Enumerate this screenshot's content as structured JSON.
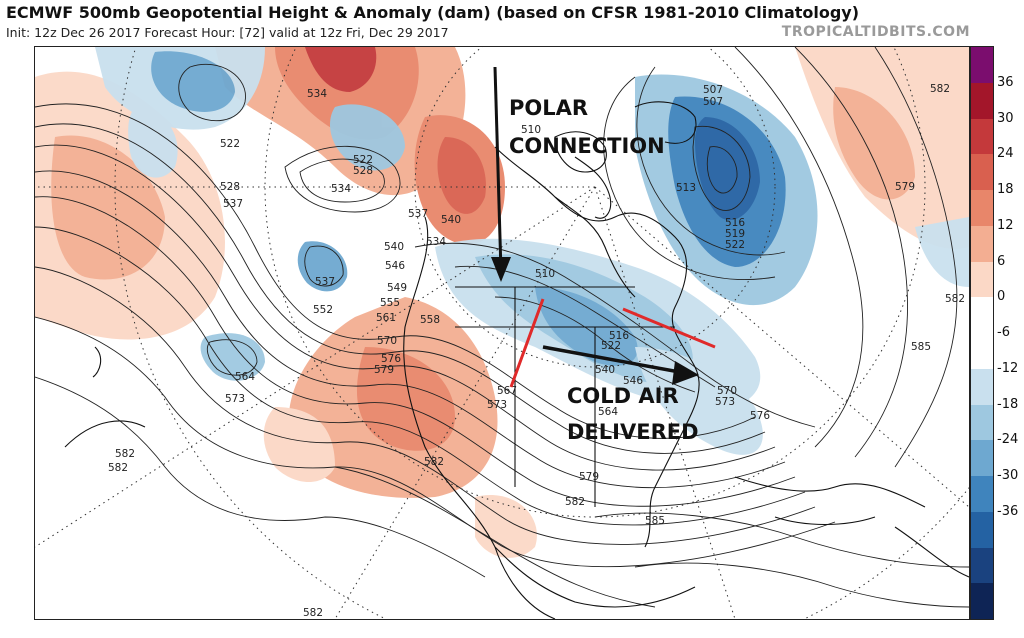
{
  "header": {
    "title": "ECMWF 500mb Geopotential Height & Anomaly (dam) (based on CFSR 1981-2010 Climatology)",
    "subtitle": "Init: 12z Dec 26 2017   Forecast Hour: [72]   valid at 12z Fri, Dec 29 2017",
    "brand": "TROPICALTIDBITS.COM"
  },
  "annotations": {
    "polar_line1": "POLAR",
    "polar_line2": "CONNECTION",
    "cold_line1": "COLD AIR",
    "cold_line2": "DELIVERED"
  },
  "colorbar": {
    "ticks": [
      "36",
      "30",
      "24",
      "18",
      "12",
      "6",
      "0",
      "-6",
      "-12",
      "-18",
      "-24",
      "-30",
      "-36"
    ],
    "colors": [
      "#7b0d6e",
      "#a3162a",
      "#c4393b",
      "#d9604f",
      "#e8866a",
      "#f3ae92",
      "#fbd8c6",
      "#ffffff",
      "#ffffff",
      "#c9e0ee",
      "#9ec8e0",
      "#6ea8d0",
      "#3f84bd",
      "#2462a3",
      "#1a427f",
      "#0e2455"
    ]
  },
  "contour_labels": [
    {
      "text": "534"
    },
    {
      "text": "522"
    },
    {
      "text": "528"
    },
    {
      "text": "537"
    },
    {
      "text": "522"
    },
    {
      "text": "528"
    },
    {
      "text": "534"
    },
    {
      "text": "537"
    },
    {
      "text": "540"
    },
    {
      "text": "534"
    },
    {
      "text": "540"
    },
    {
      "text": "546"
    },
    {
      "text": "549"
    },
    {
      "text": "555"
    },
    {
      "text": "558"
    },
    {
      "text": "561"
    },
    {
      "text": "570"
    },
    {
      "text": "576"
    },
    {
      "text": "579"
    },
    {
      "text": "564"
    },
    {
      "text": "573"
    },
    {
      "text": "537"
    },
    {
      "text": "552"
    },
    {
      "text": "567"
    },
    {
      "text": "573"
    },
    {
      "text": "582"
    },
    {
      "text": "582"
    },
    {
      "text": "582"
    },
    {
      "text": "582"
    },
    {
      "text": "585"
    },
    {
      "text": "579"
    },
    {
      "text": "564"
    },
    {
      "text": "510"
    },
    {
      "text": "507"
    },
    {
      "text": "513"
    },
    {
      "text": "516"
    },
    {
      "text": "519"
    },
    {
      "text": "522"
    },
    {
      "text": "579"
    },
    {
      "text": "582"
    },
    {
      "text": "585"
    },
    {
      "text": "570"
    },
    {
      "text": "573"
    },
    {
      "text": "576"
    },
    {
      "text": "507"
    },
    {
      "text": "510"
    },
    {
      "text": "516"
    },
    {
      "text": "522"
    },
    {
      "text": "540"
    },
    {
      "text": "546"
    },
    {
      "text": "582"
    },
    {
      "text": "582"
    }
  ]
}
